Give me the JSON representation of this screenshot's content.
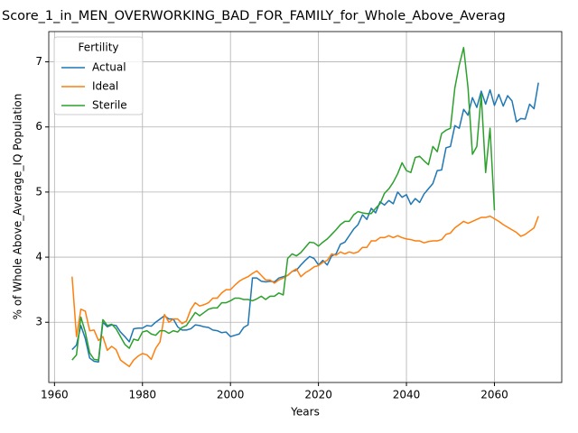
{
  "chart_data": {
    "type": "line",
    "title": "Score_1_in_MEN_OVERWORKING_BAD_FOR_FAMILY_for_Whole_Above_Averag",
    "x_label": "Years",
    "y_label": "% of Whole Above_Average_IQ Population",
    "legend_title": "Fertility",
    "legend_loc": "upper left",
    "grid": true,
    "x": [
      1964,
      1965,
      1966,
      1967,
      1968,
      1969,
      1970,
      1971,
      1972,
      1973,
      1974,
      1975,
      1976,
      1977,
      1978,
      1979,
      1980,
      1981,
      1982,
      1983,
      1984,
      1985,
      1986,
      1987,
      1988,
      1989,
      1990,
      1991,
      1992,
      1993,
      1994,
      1995,
      1996,
      1997,
      1998,
      1999,
      2000,
      2001,
      2002,
      2003,
      2004,
      2005,
      2006,
      2007,
      2008,
      2009,
      2010,
      2011,
      2012,
      2013,
      2014,
      2015,
      2016,
      2017,
      2018,
      2019,
      2020,
      2021,
      2022,
      2023,
      2024,
      2025,
      2026,
      2027,
      2028,
      2029,
      2030,
      2031,
      2032,
      2033,
      2034,
      2035,
      2036,
      2037,
      2038,
      2039,
      2040,
      2041,
      2042,
      2043,
      2044,
      2045,
      2046,
      2047,
      2048,
      2049,
      2050,
      2051,
      2052,
      2053,
      2054,
      2055,
      2056,
      2057,
      2058,
      2059,
      2060,
      2061,
      2062,
      2063,
      2064,
      2065,
      2066,
      2067,
      2068,
      2069,
      2070
    ],
    "series": [
      {
        "name": "Actual",
        "color": "#1f77b4",
        "values": [
          2.58,
          2.65,
          2.95,
          2.75,
          2.45,
          2.4,
          2.39,
          3.0,
          2.93,
          2.96,
          2.95,
          2.85,
          2.78,
          2.7,
          2.9,
          2.91,
          2.91,
          2.95,
          2.94,
          3.0,
          3.05,
          3.1,
          3.05,
          3.05,
          2.93,
          2.88,
          2.88,
          2.9,
          2.96,
          2.95,
          2.93,
          2.92,
          2.88,
          2.87,
          2.84,
          2.85,
          2.78,
          2.8,
          2.82,
          2.92,
          2.96,
          3.68,
          3.68,
          3.63,
          3.62,
          3.63,
          3.62,
          3.68,
          3.7,
          3.72,
          3.78,
          3.8,
          3.88,
          3.95,
          4.01,
          3.98,
          3.88,
          3.95,
          3.88,
          4.02,
          4.05,
          4.2,
          4.23,
          4.33,
          4.43,
          4.5,
          4.65,
          4.58,
          4.75,
          4.68,
          4.85,
          4.8,
          4.87,
          4.82,
          5.0,
          4.92,
          4.96,
          4.81,
          4.9,
          4.84,
          4.97,
          5.05,
          5.13,
          5.33,
          5.34,
          5.68,
          5.7,
          6.02,
          5.98,
          6.27,
          6.18,
          6.45,
          6.3,
          6.55,
          6.35,
          6.57,
          6.33,
          6.5,
          6.32,
          6.48,
          6.4,
          6.08,
          6.13,
          6.12,
          6.35,
          6.28,
          6.68
        ]
      },
      {
        "name": "Ideal",
        "color": "#ff7f0e",
        "values": [
          3.7,
          2.78,
          3.2,
          3.17,
          2.87,
          2.88,
          2.72,
          2.78,
          2.57,
          2.63,
          2.58,
          2.42,
          2.37,
          2.32,
          2.42,
          2.48,
          2.52,
          2.5,
          2.43,
          2.6,
          2.7,
          3.12,
          3.0,
          3.05,
          3.05,
          2.98,
          3.02,
          3.2,
          3.3,
          3.25,
          3.27,
          3.3,
          3.37,
          3.37,
          3.45,
          3.5,
          3.5,
          3.57,
          3.63,
          3.67,
          3.7,
          3.75,
          3.79,
          3.72,
          3.65,
          3.65,
          3.6,
          3.65,
          3.68,
          3.72,
          3.78,
          3.82,
          3.7,
          3.76,
          3.8,
          3.85,
          3.87,
          3.92,
          3.95,
          4.05,
          4.03,
          4.08,
          4.05,
          4.08,
          4.06,
          4.08,
          4.15,
          4.15,
          4.25,
          4.25,
          4.3,
          4.3,
          4.33,
          4.3,
          4.33,
          4.3,
          4.28,
          4.27,
          4.25,
          4.25,
          4.22,
          4.24,
          4.25,
          4.25,
          4.27,
          4.35,
          4.37,
          4.45,
          4.5,
          4.55,
          4.52,
          4.55,
          4.58,
          4.61,
          4.61,
          4.63,
          4.59,
          4.55,
          4.5,
          4.46,
          4.42,
          4.38,
          4.32,
          4.35,
          4.4,
          4.45,
          4.63
        ]
      },
      {
        "name": "Sterile",
        "color": "#2ca02c",
        "values": [
          2.42,
          2.5,
          3.08,
          2.85,
          2.53,
          2.43,
          2.42,
          3.04,
          2.95,
          2.97,
          2.9,
          2.78,
          2.66,
          2.6,
          2.74,
          2.72,
          2.85,
          2.87,
          2.82,
          2.8,
          2.87,
          2.87,
          2.83,
          2.87,
          2.85,
          2.92,
          2.95,
          3.05,
          3.15,
          3.1,
          3.15,
          3.2,
          3.22,
          3.22,
          3.3,
          3.3,
          3.33,
          3.37,
          3.37,
          3.35,
          3.35,
          3.33,
          3.36,
          3.4,
          3.35,
          3.4,
          3.4,
          3.45,
          3.42,
          3.98,
          4.05,
          4.02,
          4.07,
          4.15,
          4.23,
          4.22,
          4.17,
          4.23,
          4.28,
          4.35,
          4.42,
          4.5,
          4.55,
          4.55,
          4.65,
          4.7,
          4.68,
          4.67,
          4.67,
          4.75,
          4.82,
          4.98,
          5.05,
          5.15,
          5.28,
          5.45,
          5.33,
          5.3,
          5.53,
          5.55,
          5.48,
          5.42,
          5.7,
          5.62,
          5.9,
          5.95,
          5.98,
          6.6,
          6.95,
          7.22,
          6.6,
          5.58,
          5.7,
          6.5,
          5.3,
          5.98,
          4.72,
          null,
          null,
          null,
          null,
          null,
          null,
          null,
          null,
          null,
          null
        ]
      }
    ],
    "xlim": [
      1958.7,
      2075.3
    ],
    "xticks": [
      1960,
      1980,
      2000,
      2020,
      2040,
      2060
    ],
    "ylim": [
      2.075,
      7.465
    ],
    "yticks": [
      3,
      4,
      5,
      6,
      7
    ]
  }
}
